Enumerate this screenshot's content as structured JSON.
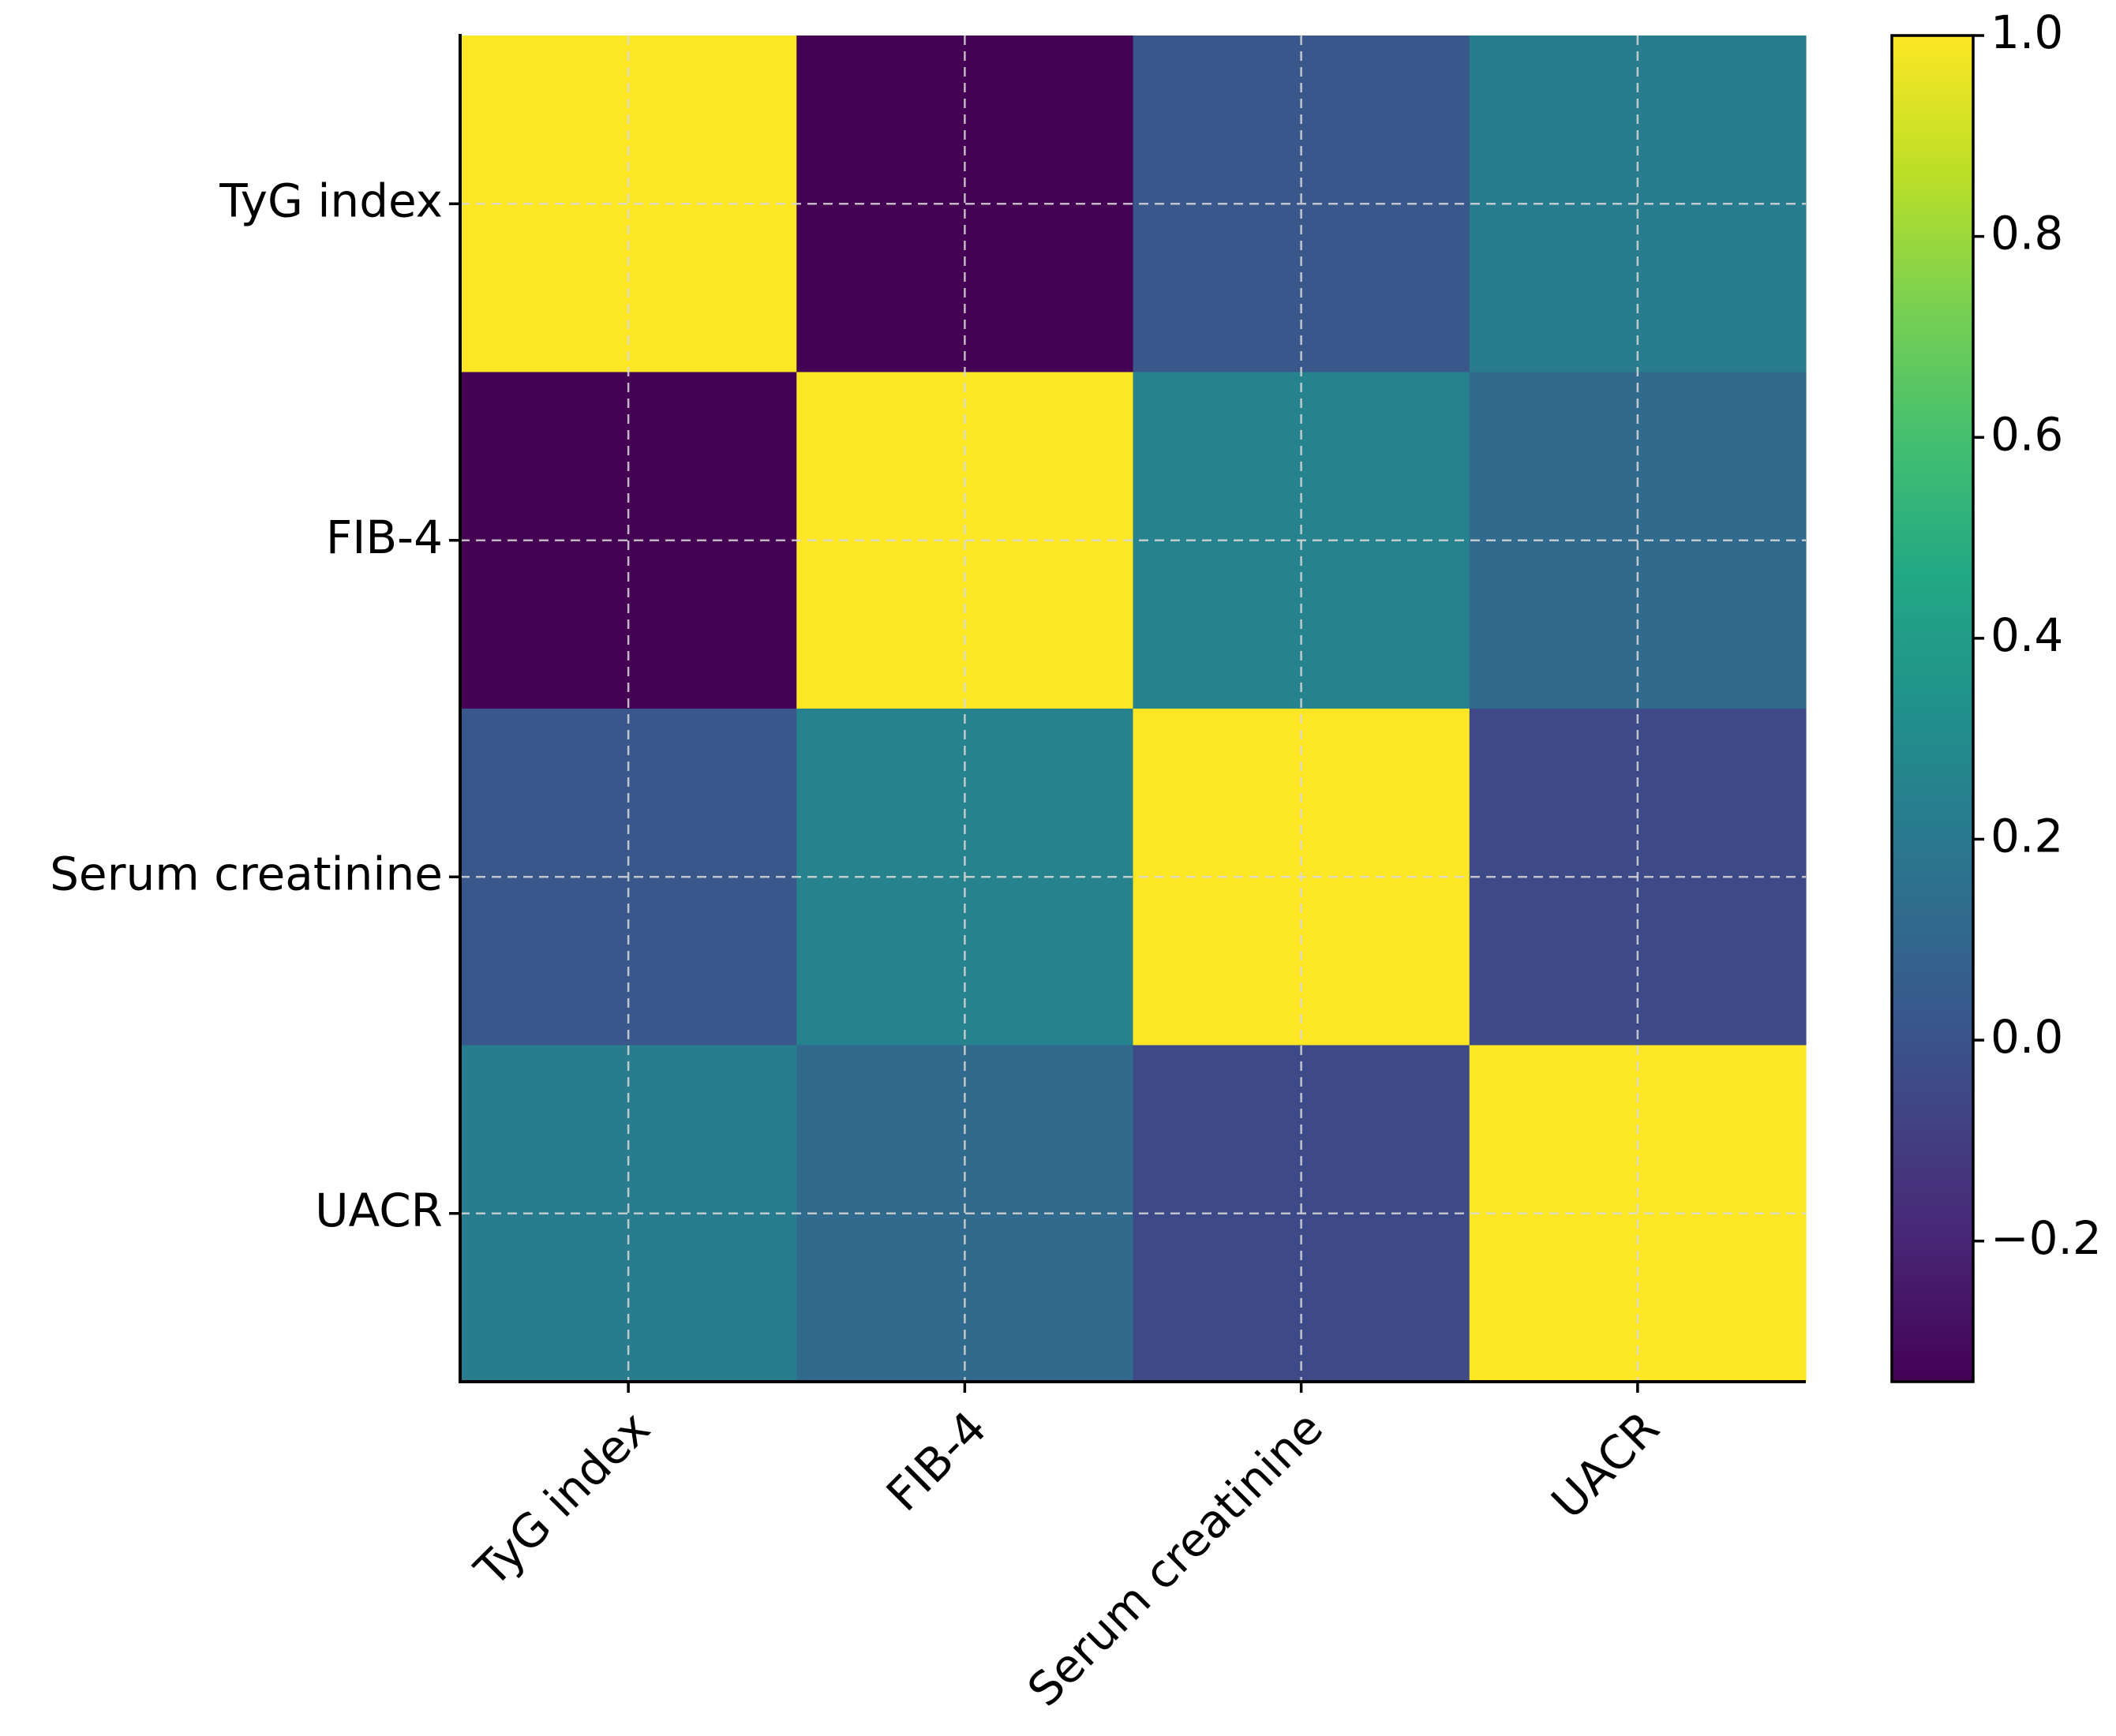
{
  "chart_data": {
    "type": "heatmap",
    "title": "",
    "xlabel": "",
    "ylabel": "",
    "rows": [
      "TyG index",
      "FIB-4",
      "Serum creatinine",
      "UACR"
    ],
    "columns": [
      "TyG index",
      "FIB-4",
      "Serum creatinine",
      "UACR"
    ],
    "values": [
      [
        1.0,
        -0.34,
        0.02,
        0.22
      ],
      [
        -0.34,
        1.0,
        0.25,
        0.12
      ],
      [
        0.02,
        0.25,
        1.0,
        -0.04
      ],
      [
        0.22,
        0.12,
        -0.04,
        1.0
      ]
    ],
    "colormap": "viridis",
    "vmin": -0.34,
    "vmax": 1.0,
    "colorbar": {
      "ticks": [
        1.0,
        0.8,
        0.6,
        0.4,
        0.2,
        0.0,
        -0.2
      ],
      "tick_labels": [
        "1.0",
        "0.8",
        "0.6",
        "0.4",
        "0.2",
        "0.0",
        "−0.2"
      ]
    },
    "grid": true,
    "x_tick_rotation_deg": 45
  }
}
